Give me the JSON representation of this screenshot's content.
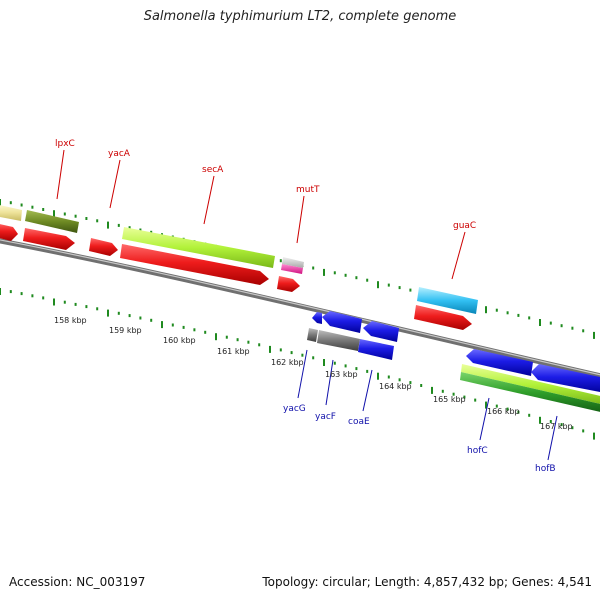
{
  "title": "Salmonella typhimurium LT2, complete genome",
  "footer": {
    "accession": "Accession: NC_003197",
    "summary": "Topology: circular; Length: 4,857,432 bp; Genes: 4,541"
  },
  "colors": {
    "forward_gene": "#e8151b",
    "reverse_gene": "#1c1ce0",
    "backbone": "#8a8a8a",
    "tick": "#1f8a1f",
    "forward_label": "#cc0000",
    "reverse_label": "#1010aa"
  },
  "kbp_ticks": [
    {
      "label": "158 kbp"
    },
    {
      "label": "159 kbp"
    },
    {
      "label": "160 kbp"
    },
    {
      "label": "161 kbp"
    },
    {
      "label": "162 kbp"
    },
    {
      "label": "163 kbp"
    },
    {
      "label": "164 kbp"
    },
    {
      "label": "165 kbp"
    },
    {
      "label": "166 kbp"
    },
    {
      "label": "167 kbp"
    }
  ],
  "forward_gene_labels": [
    {
      "name": "lpxC"
    },
    {
      "name": "yacA"
    },
    {
      "name": "secA"
    },
    {
      "name": "mutT"
    },
    {
      "name": "guaC"
    }
  ],
  "reverse_gene_labels": [
    {
      "name": "yacG"
    },
    {
      "name": "yacF"
    },
    {
      "name": "coaE"
    },
    {
      "name": "hofC"
    },
    {
      "name": "hofB"
    }
  ]
}
